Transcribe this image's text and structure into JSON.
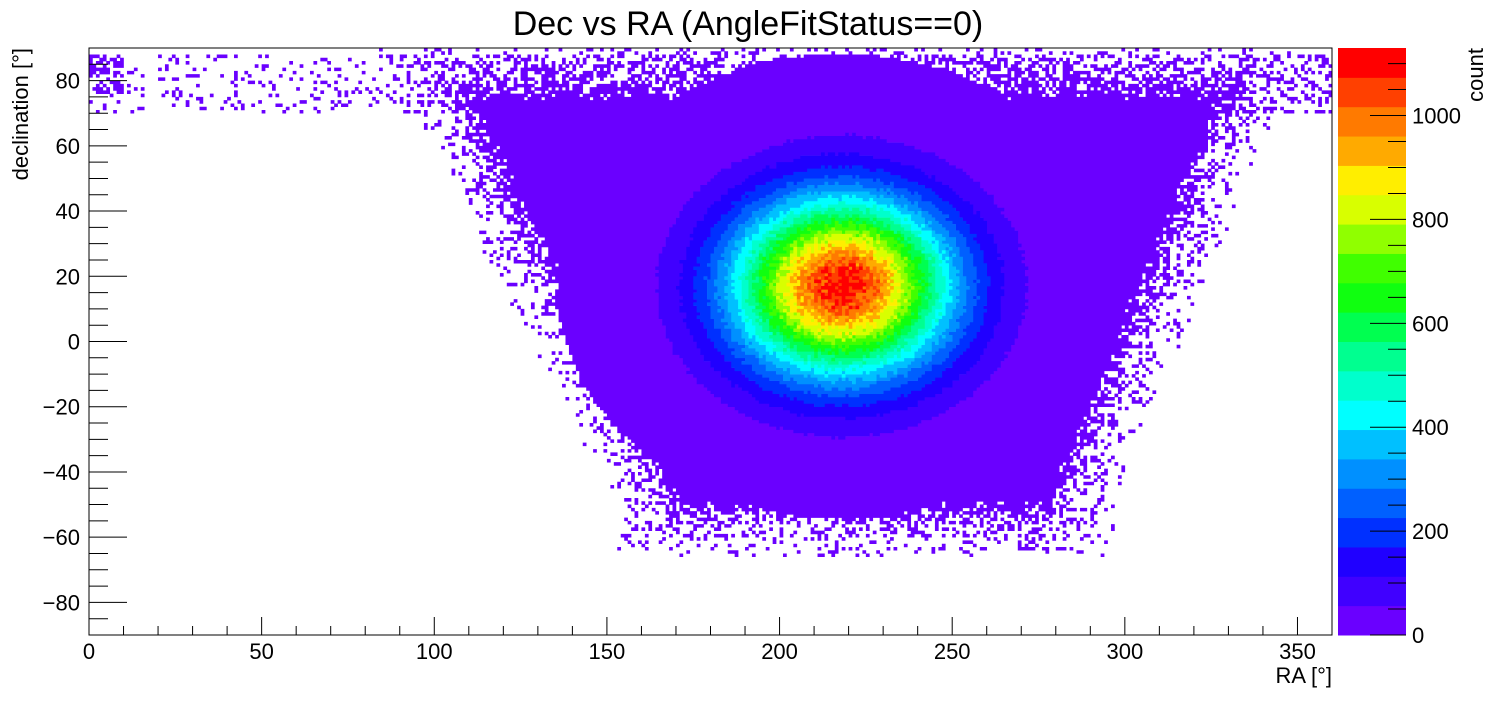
{
  "chart_data": {
    "type": "heatmap",
    "title": "Dec vs RA (AngleFitStatus==0)",
    "xlabel": "RA [°]",
    "ylabel": "declination [°]",
    "zlabel": "count",
    "xlim": [
      0,
      360
    ],
    "ylim": [
      -90,
      90
    ],
    "zlim": [
      0,
      1130
    ],
    "x_ticks": [
      "0",
      "50",
      "100",
      "150",
      "200",
      "250",
      "300",
      "350"
    ],
    "x_tick_values": [
      0,
      50,
      100,
      150,
      200,
      250,
      300,
      350
    ],
    "y_ticks": [
      "−80",
      "−60",
      "−40",
      "−20",
      "0",
      "20",
      "40",
      "60",
      "80"
    ],
    "y_tick_values": [
      -80,
      -60,
      -40,
      -20,
      0,
      20,
      40,
      60,
      80
    ],
    "z_ticks": [
      "0",
      "200",
      "400",
      "600",
      "800",
      "1000"
    ],
    "z_tick_values": [
      0,
      200,
      400,
      600,
      800,
      1000
    ],
    "peak": {
      "ra": 218,
      "dec": 17,
      "count": 1100
    },
    "core_sigma": {
      "ra": 22,
      "dec": 19
    },
    "palette": [
      "#6a00ff",
      "#4000ff",
      "#2000ff",
      "#0030ff",
      "#0060ff",
      "#0090ff",
      "#00c0ff",
      "#00ffff",
      "#00ffcc",
      "#00ff90",
      "#00ff50",
      "#10ff10",
      "#40ff00",
      "#90ff00",
      "#d8ff00",
      "#ffee00",
      "#ffaa00",
      "#ff7a00",
      "#ff4000",
      "#ff0000"
    ],
    "grid": false,
    "legend": "colorbar-right"
  }
}
